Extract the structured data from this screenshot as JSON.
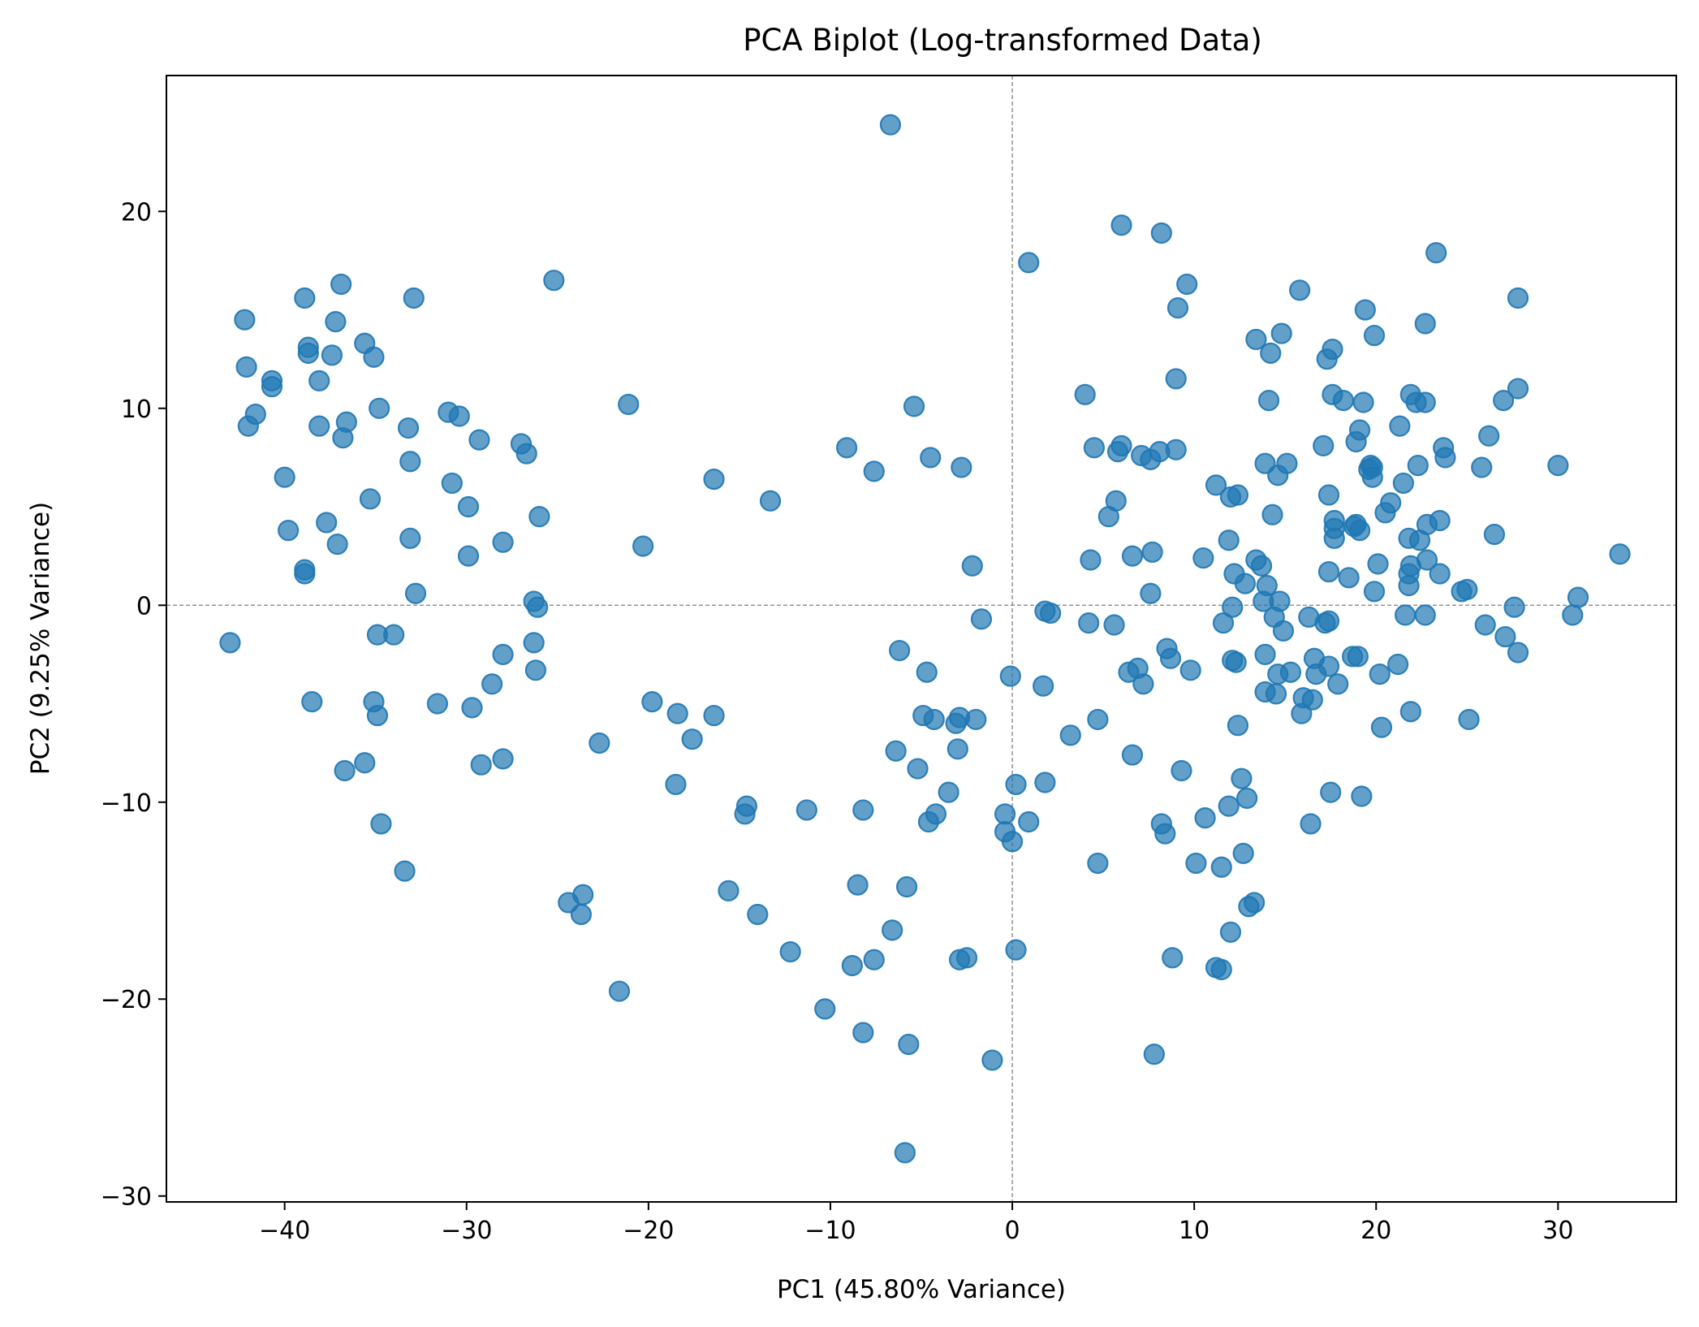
{
  "chart_data": {
    "type": "scatter",
    "title": "PCA Biplot (Log-transformed Data)",
    "xlabel": "PC1 (45.80% Variance)",
    "ylabel": "PC2 (9.25% Variance)",
    "xlim": [
      -46.5,
      36.5
    ],
    "ylim": [
      -30.3,
      26.9
    ],
    "xticks": [
      -40,
      -30,
      -20,
      -10,
      0,
      10,
      20,
      30
    ],
    "yticks": [
      -30,
      -20,
      -10,
      0,
      10,
      20
    ],
    "xtick_labels": [
      "−40",
      "−30",
      "−20",
      "−10",
      "0",
      "10",
      "20",
      "30"
    ],
    "ytick_labels": [
      "−30",
      "−20",
      "−10",
      "0",
      "10",
      "20"
    ],
    "grid": false,
    "reference_lines": {
      "x": 0,
      "y": 0,
      "style": "dashed",
      "color": "#808080"
    },
    "marker_color": "#1f77b4",
    "marker_alpha": 0.7,
    "points": [
      [
        -43.0,
        -1.9
      ],
      [
        -42.2,
        14.5
      ],
      [
        -42.1,
        12.1
      ],
      [
        -42.0,
        9.1
      ],
      [
        -41.6,
        9.7
      ],
      [
        -40.7,
        11.4
      ],
      [
        -40.7,
        11.1
      ],
      [
        -40.0,
        6.5
      ],
      [
        -39.8,
        3.8
      ],
      [
        -38.9,
        15.6
      ],
      [
        -38.9,
        1.6
      ],
      [
        -38.9,
        1.8
      ],
      [
        -38.7,
        13.1
      ],
      [
        -38.7,
        12.8
      ],
      [
        -38.5,
        -4.9
      ],
      [
        -38.1,
        11.4
      ],
      [
        -38.1,
        9.1
      ],
      [
        -37.7,
        4.2
      ],
      [
        -37.4,
        12.7
      ],
      [
        -37.2,
        14.4
      ],
      [
        -37.1,
        3.1
      ],
      [
        -36.9,
        16.3
      ],
      [
        -36.8,
        8.5
      ],
      [
        -36.7,
        -8.4
      ],
      [
        -36.6,
        9.3
      ],
      [
        -35.6,
        13.3
      ],
      [
        -35.6,
        -8.0
      ],
      [
        -35.3,
        5.4
      ],
      [
        -35.1,
        12.6
      ],
      [
        -35.1,
        -4.9
      ],
      [
        -34.9,
        -1.5
      ],
      [
        -34.9,
        -5.6
      ],
      [
        -34.8,
        10.0
      ],
      [
        -34.7,
        -11.1
      ],
      [
        -34.0,
        -1.5
      ],
      [
        -33.4,
        -13.5
      ],
      [
        -33.2,
        9.0
      ],
      [
        -33.1,
        7.3
      ],
      [
        -33.1,
        3.4
      ],
      [
        -32.9,
        15.6
      ],
      [
        -32.8,
        0.6
      ],
      [
        -31.6,
        -5.0
      ],
      [
        -31.0,
        9.8
      ],
      [
        -30.8,
        6.2
      ],
      [
        -30.4,
        9.6
      ],
      [
        -29.9,
        5.0
      ],
      [
        -29.9,
        2.5
      ],
      [
        -29.7,
        -5.2
      ],
      [
        -29.3,
        8.4
      ],
      [
        -29.2,
        -8.1
      ],
      [
        -28.6,
        -4.0
      ],
      [
        -28.0,
        3.2
      ],
      [
        -28.0,
        -2.5
      ],
      [
        -28.0,
        -7.8
      ],
      [
        -27.0,
        8.2
      ],
      [
        -26.7,
        7.7
      ],
      [
        -26.3,
        0.2
      ],
      [
        -26.3,
        -1.9
      ],
      [
        -26.2,
        -3.3
      ],
      [
        -26.1,
        -0.1
      ],
      [
        -26.0,
        4.5
      ],
      [
        -25.2,
        16.5
      ],
      [
        -24.4,
        -15.1
      ],
      [
        -23.6,
        -14.7
      ],
      [
        -23.7,
        -15.7
      ],
      [
        -22.7,
        -7.0
      ],
      [
        -21.6,
        -19.6
      ],
      [
        -21.1,
        10.2
      ],
      [
        -20.3,
        3.0
      ],
      [
        -19.8,
        -4.9
      ],
      [
        -18.5,
        -9.1
      ],
      [
        -18.4,
        -5.5
      ],
      [
        -17.6,
        -6.8
      ],
      [
        -16.4,
        6.4
      ],
      [
        -16.4,
        -5.6
      ],
      [
        -15.6,
        -14.5
      ],
      [
        -14.7,
        -10.6
      ],
      [
        -14.6,
        -10.2
      ],
      [
        -14.0,
        -15.7
      ],
      [
        -13.3,
        5.3
      ],
      [
        -12.2,
        -17.6
      ],
      [
        -11.3,
        -10.4
      ],
      [
        -10.3,
        -20.5
      ],
      [
        -9.1,
        8.0
      ],
      [
        -8.8,
        -18.3
      ],
      [
        -8.5,
        -14.2
      ],
      [
        -8.2,
        -21.7
      ],
      [
        -8.2,
        -10.4
      ],
      [
        -7.6,
        6.8
      ],
      [
        -7.6,
        -18.0
      ],
      [
        -6.7,
        24.4
      ],
      [
        -6.6,
        -16.5
      ],
      [
        -6.4,
        -7.4
      ],
      [
        -6.2,
        -2.3
      ],
      [
        -5.9,
        -27.8
      ],
      [
        -5.8,
        -14.3
      ],
      [
        -5.7,
        -22.3
      ],
      [
        -5.4,
        10.1
      ],
      [
        -5.2,
        -8.3
      ],
      [
        -4.9,
        -5.6
      ],
      [
        -4.7,
        -3.4
      ],
      [
        -4.6,
        -11.0
      ],
      [
        -4.5,
        7.5
      ],
      [
        -4.3,
        -5.8
      ],
      [
        -4.2,
        -10.6
      ],
      [
        -3.5,
        -9.5
      ],
      [
        -3.1,
        -6.0
      ],
      [
        -3.0,
        -7.3
      ],
      [
        -2.9,
        -18.0
      ],
      [
        -2.9,
        -5.7
      ],
      [
        -2.8,
        7.0
      ],
      [
        -2.5,
        -17.9
      ],
      [
        -2.2,
        2.0
      ],
      [
        -2.0,
        -5.8
      ],
      [
        -1.7,
        -0.7
      ],
      [
        -1.1,
        -23.1
      ],
      [
        -0.4,
        -10.6
      ],
      [
        -0.4,
        -11.5
      ],
      [
        -0.1,
        -3.6
      ],
      [
        0.0,
        -12.0
      ],
      [
        0.2,
        -9.1
      ],
      [
        0.2,
        -17.5
      ],
      [
        0.9,
        17.4
      ],
      [
        0.9,
        -11.0
      ],
      [
        1.7,
        -4.1
      ],
      [
        1.8,
        -9.0
      ],
      [
        1.8,
        -0.3
      ],
      [
        2.1,
        -0.4
      ],
      [
        3.2,
        -6.6
      ],
      [
        4.0,
        10.7
      ],
      [
        4.2,
        -0.9
      ],
      [
        4.3,
        2.3
      ],
      [
        4.5,
        8.0
      ],
      [
        4.7,
        -5.8
      ],
      [
        4.7,
        -13.1
      ],
      [
        5.3,
        4.5
      ],
      [
        5.6,
        -1.0
      ],
      [
        5.7,
        5.3
      ],
      [
        5.8,
        7.8
      ],
      [
        6.0,
        19.3
      ],
      [
        6.0,
        8.1
      ],
      [
        6.4,
        -3.4
      ],
      [
        6.6,
        -7.6
      ],
      [
        6.6,
        2.5
      ],
      [
        6.9,
        -3.2
      ],
      [
        7.1,
        7.6
      ],
      [
        7.2,
        -4.0
      ],
      [
        7.6,
        7.4
      ],
      [
        7.6,
        0.6
      ],
      [
        7.7,
        2.7
      ],
      [
        7.8,
        -22.8
      ],
      [
        8.1,
        7.8
      ],
      [
        8.2,
        18.9
      ],
      [
        8.2,
        -11.1
      ],
      [
        8.4,
        -11.6
      ],
      [
        8.5,
        -2.2
      ],
      [
        8.7,
        -2.7
      ],
      [
        8.8,
        -17.9
      ],
      [
        9.0,
        11.5
      ],
      [
        9.0,
        7.9
      ],
      [
        9.1,
        15.1
      ],
      [
        9.3,
        -8.4
      ],
      [
        9.6,
        16.3
      ],
      [
        9.8,
        -3.3
      ],
      [
        10.1,
        -13.1
      ],
      [
        10.5,
        2.4
      ],
      [
        10.6,
        -10.8
      ],
      [
        11.2,
        6.1
      ],
      [
        11.2,
        -18.4
      ],
      [
        11.5,
        -18.5
      ],
      [
        11.5,
        -13.3
      ],
      [
        11.6,
        -0.9
      ],
      [
        11.9,
        3.3
      ],
      [
        11.9,
        -10.2
      ],
      [
        12.0,
        5.5
      ],
      [
        12.0,
        -16.6
      ],
      [
        12.1,
        -0.1
      ],
      [
        12.1,
        -2.8
      ],
      [
        12.2,
        1.6
      ],
      [
        12.3,
        -2.9
      ],
      [
        12.4,
        5.6
      ],
      [
        12.4,
        -6.1
      ],
      [
        12.6,
        -8.8
      ],
      [
        12.7,
        -12.6
      ],
      [
        12.8,
        1.1
      ],
      [
        12.9,
        -9.8
      ],
      [
        13.0,
        -15.3
      ],
      [
        13.3,
        -15.1
      ],
      [
        13.4,
        2.3
      ],
      [
        13.4,
        13.5
      ],
      [
        13.7,
        2.0
      ],
      [
        13.8,
        0.2
      ],
      [
        13.9,
        -4.4
      ],
      [
        13.9,
        7.2
      ],
      [
        13.9,
        -2.5
      ],
      [
        14.0,
        1.0
      ],
      [
        14.1,
        10.4
      ],
      [
        14.2,
        12.8
      ],
      [
        14.3,
        4.6
      ],
      [
        14.4,
        -0.6
      ],
      [
        14.5,
        -4.5
      ],
      [
        14.6,
        -3.5
      ],
      [
        14.6,
        6.6
      ],
      [
        14.7,
        0.2
      ],
      [
        14.8,
        13.8
      ],
      [
        14.9,
        -1.3
      ],
      [
        15.1,
        7.2
      ],
      [
        15.3,
        -3.4
      ],
      [
        15.8,
        16.0
      ],
      [
        15.9,
        -5.5
      ],
      [
        16.0,
        -4.7
      ],
      [
        16.3,
        -0.6
      ],
      [
        16.4,
        -11.1
      ],
      [
        16.5,
        -4.8
      ],
      [
        16.6,
        -2.7
      ],
      [
        16.7,
        -3.5
      ],
      [
        17.1,
        8.1
      ],
      [
        17.2,
        -0.9
      ],
      [
        17.3,
        12.5
      ],
      [
        17.4,
        -0.8
      ],
      [
        17.4,
        5.6
      ],
      [
        17.4,
        1.7
      ],
      [
        17.4,
        -3.1
      ],
      [
        17.5,
        -9.5
      ],
      [
        17.6,
        10.7
      ],
      [
        17.6,
        13.0
      ],
      [
        17.7,
        3.4
      ],
      [
        17.7,
        3.9
      ],
      [
        17.7,
        4.3
      ],
      [
        17.9,
        -4.0
      ],
      [
        18.2,
        10.4
      ],
      [
        18.5,
        1.4
      ],
      [
        18.7,
        -2.6
      ],
      [
        18.8,
        4.0
      ],
      [
        18.9,
        8.3
      ],
      [
        18.9,
        4.1
      ],
      [
        19.0,
        -2.6
      ],
      [
        19.1,
        3.8
      ],
      [
        19.1,
        8.9
      ],
      [
        19.2,
        -9.7
      ],
      [
        19.3,
        10.3
      ],
      [
        19.4,
        15.0
      ],
      [
        19.6,
        6.9
      ],
      [
        19.7,
        7.1
      ],
      [
        19.8,
        7.0
      ],
      [
        19.8,
        6.5
      ],
      [
        19.9,
        0.7
      ],
      [
        19.9,
        13.7
      ],
      [
        20.1,
        2.1
      ],
      [
        20.2,
        -3.5
      ],
      [
        20.3,
        -6.2
      ],
      [
        20.5,
        4.7
      ],
      [
        20.8,
        5.2
      ],
      [
        21.2,
        -3.0
      ],
      [
        21.3,
        9.1
      ],
      [
        21.5,
        6.2
      ],
      [
        21.6,
        -0.5
      ],
      [
        21.8,
        3.4
      ],
      [
        21.8,
        1.0
      ],
      [
        21.8,
        1.6
      ],
      [
        21.9,
        10.7
      ],
      [
        21.9,
        -5.4
      ],
      [
        21.9,
        2.0
      ],
      [
        22.2,
        10.3
      ],
      [
        22.3,
        7.1
      ],
      [
        22.4,
        3.3
      ],
      [
        22.7,
        14.3
      ],
      [
        22.7,
        10.3
      ],
      [
        22.7,
        -0.5
      ],
      [
        22.8,
        4.1
      ],
      [
        22.8,
        2.3
      ],
      [
        23.3,
        17.9
      ],
      [
        23.5,
        4.3
      ],
      [
        23.5,
        1.6
      ],
      [
        23.7,
        8.0
      ],
      [
        23.8,
        7.5
      ],
      [
        24.7,
        0.7
      ],
      [
        25.1,
        -5.8
      ],
      [
        25.0,
        0.8
      ],
      [
        25.8,
        7.0
      ],
      [
        26.0,
        -1.0
      ],
      [
        26.2,
        8.6
      ],
      [
        26.5,
        3.6
      ],
      [
        27.0,
        10.4
      ],
      [
        27.1,
        -1.6
      ],
      [
        27.6,
        -0.1
      ],
      [
        27.8,
        11.0
      ],
      [
        27.8,
        15.6
      ],
      [
        27.8,
        -2.4
      ],
      [
        30.0,
        7.1
      ],
      [
        30.8,
        -0.5
      ],
      [
        31.1,
        0.4
      ],
      [
        33.4,
        2.6
      ]
    ]
  }
}
